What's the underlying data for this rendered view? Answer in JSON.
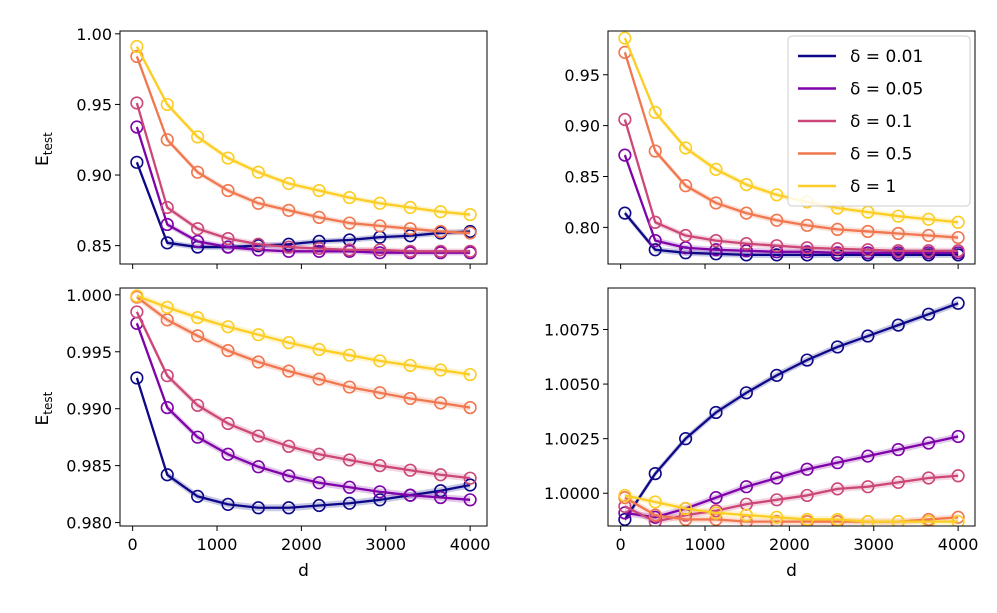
{
  "chart_data": [
    {
      "type": "line",
      "panel": "top-left",
      "ylabel": "E_test",
      "xlabel": "",
      "x": [
        50,
        410,
        770,
        1130,
        1490,
        1850,
        2210,
        2570,
        2930,
        3290,
        3650,
        4000
      ],
      "xlim": [
        -150,
        4200
      ],
      "ylim": [
        0.837,
        1.002
      ],
      "xticks": [
        "0",
        "1000",
        "2000",
        "3000",
        "4000"
      ],
      "xtick_values": [
        0,
        1000,
        2000,
        3000,
        4000
      ],
      "show_xticklabels": false,
      "yticks": [
        "0.85",
        "0.90",
        "0.95",
        "1.00"
      ],
      "ytick_values": [
        0.85,
        0.9,
        0.95,
        1.0
      ],
      "band": 0.002,
      "series": [
        {
          "name": "δ = 0.01",
          "values": [
            0.909,
            0.852,
            0.849,
            0.849,
            0.85,
            0.851,
            0.853,
            0.854,
            0.856,
            0.857,
            0.859,
            0.86
          ]
        },
        {
          "name": "δ = 0.05",
          "values": [
            0.934,
            0.865,
            0.853,
            0.849,
            0.847,
            0.846,
            0.846,
            0.846,
            0.845,
            0.845,
            0.845,
            0.845
          ]
        },
        {
          "name": "δ = 0.1",
          "values": [
            0.951,
            0.877,
            0.862,
            0.855,
            0.851,
            0.849,
            0.848,
            0.847,
            0.847,
            0.846,
            0.846,
            0.846
          ]
        },
        {
          "name": "δ = 0.5",
          "values": [
            0.984,
            0.925,
            0.902,
            0.889,
            0.88,
            0.875,
            0.87,
            0.866,
            0.864,
            0.862,
            0.86,
            0.859
          ]
        },
        {
          "name": "δ = 1",
          "values": [
            0.991,
            0.95,
            0.927,
            0.912,
            0.902,
            0.894,
            0.889,
            0.884,
            0.88,
            0.877,
            0.874,
            0.872
          ]
        }
      ]
    },
    {
      "type": "line",
      "panel": "top-right",
      "ylabel": "",
      "xlabel": "",
      "x": [
        50,
        410,
        770,
        1130,
        1490,
        1850,
        2210,
        2570,
        2930,
        3290,
        3650,
        4000
      ],
      "xlim": [
        -150,
        4200
      ],
      "ylim": [
        0.764,
        0.993
      ],
      "xticks": [
        "0",
        "1000",
        "2000",
        "3000",
        "4000"
      ],
      "xtick_values": [
        0,
        1000,
        2000,
        3000,
        4000
      ],
      "show_xticklabels": false,
      "yticks": [
        "0.80",
        "0.85",
        "0.90",
        "0.95"
      ],
      "ytick_values": [
        0.8,
        0.85,
        0.9,
        0.95
      ],
      "band": 0.003,
      "series": [
        {
          "name": "δ = 0.01",
          "values": [
            0.814,
            0.778,
            0.775,
            0.774,
            0.773,
            0.773,
            0.773,
            0.773,
            0.773,
            0.773,
            0.773,
            0.773
          ]
        },
        {
          "name": "δ = 0.05",
          "values": [
            0.871,
            0.787,
            0.78,
            0.778,
            0.777,
            0.776,
            0.776,
            0.775,
            0.775,
            0.775,
            0.775,
            0.775
          ]
        },
        {
          "name": "δ = 0.1",
          "values": [
            0.906,
            0.805,
            0.792,
            0.787,
            0.784,
            0.782,
            0.78,
            0.779,
            0.778,
            0.777,
            0.777,
            0.777
          ]
        },
        {
          "name": "δ = 0.5",
          "values": [
            0.972,
            0.875,
            0.841,
            0.824,
            0.814,
            0.807,
            0.802,
            0.798,
            0.796,
            0.794,
            0.792,
            0.79
          ]
        },
        {
          "name": "δ = 1",
          "values": [
            0.986,
            0.913,
            0.878,
            0.857,
            0.842,
            0.832,
            0.825,
            0.819,
            0.815,
            0.811,
            0.808,
            0.805
          ]
        }
      ]
    },
    {
      "type": "line",
      "panel": "bottom-left",
      "ylabel": "E_test",
      "xlabel": "d",
      "x": [
        50,
        410,
        770,
        1130,
        1490,
        1850,
        2210,
        2570,
        2930,
        3290,
        3650,
        4000
      ],
      "xlim": [
        -150,
        4200
      ],
      "ylim": [
        0.9797,
        1.0006
      ],
      "xticks": [
        "0",
        "1000",
        "2000",
        "3000",
        "4000"
      ],
      "xtick_values": [
        0,
        1000,
        2000,
        3000,
        4000
      ],
      "show_xticklabels": true,
      "yticks": [
        "0.980",
        "0.985",
        "0.990",
        "0.995",
        "1.000"
      ],
      "ytick_values": [
        0.98,
        0.985,
        0.99,
        0.995,
        1.0
      ],
      "band": 0.0003,
      "series": [
        {
          "name": "δ = 0.01",
          "values": [
            0.9927,
            0.9842,
            0.9823,
            0.9816,
            0.9813,
            0.9813,
            0.9815,
            0.9817,
            0.982,
            0.9824,
            0.9828,
            0.9833
          ]
        },
        {
          "name": "δ = 0.05",
          "values": [
            0.9975,
            0.9901,
            0.9875,
            0.986,
            0.9849,
            0.9841,
            0.9835,
            0.9831,
            0.9827,
            0.9824,
            0.9822,
            0.982
          ]
        },
        {
          "name": "δ = 0.1",
          "values": [
            0.9985,
            0.9929,
            0.9903,
            0.9887,
            0.9876,
            0.9867,
            0.986,
            0.9855,
            0.985,
            0.9846,
            0.9842,
            0.9839
          ]
        },
        {
          "name": "δ = 0.5",
          "values": [
            0.9998,
            0.9978,
            0.9964,
            0.9951,
            0.9941,
            0.9933,
            0.9926,
            0.9919,
            0.9914,
            0.9909,
            0.9905,
            0.9901
          ]
        },
        {
          "name": "δ = 1",
          "values": [
            0.9999,
            0.9989,
            0.998,
            0.9972,
            0.9965,
            0.9958,
            0.9952,
            0.9947,
            0.9942,
            0.9938,
            0.9934,
            0.993
          ]
        }
      ]
    },
    {
      "type": "line",
      "panel": "bottom-right",
      "ylabel": "",
      "xlabel": "d",
      "x": [
        50,
        410,
        770,
        1130,
        1490,
        1850,
        2210,
        2570,
        2930,
        3290,
        3650,
        4000
      ],
      "xlim": [
        -150,
        4200
      ],
      "ylim": [
        0.9985,
        1.0094
      ],
      "xticks": [
        "0",
        "1000",
        "2000",
        "3000",
        "4000"
      ],
      "xtick_values": [
        0,
        1000,
        2000,
        3000,
        4000
      ],
      "show_xticklabels": true,
      "yticks": [
        "1.0000",
        "1.0025",
        "1.0050",
        "1.0075"
      ],
      "ytick_values": [
        1.0,
        1.0025,
        1.005,
        1.0075
      ],
      "band": 0.00015,
      "series": [
        {
          "name": "δ = 0.01",
          "values": [
            0.9988,
            1.0009,
            1.0025,
            1.0037,
            1.0046,
            1.0054,
            1.0061,
            1.0067,
            1.0072,
            1.0077,
            1.0082,
            1.0087
          ]
        },
        {
          "name": "δ = 0.05",
          "values": [
            0.9991,
            0.9989,
            0.9993,
            0.9998,
            1.0003,
            1.0007,
            1.0011,
            1.0014,
            1.0017,
            1.002,
            1.0023,
            1.0026
          ]
        },
        {
          "name": "δ = 0.1",
          "values": [
            0.9994,
            0.9987,
            0.999,
            0.9992,
            0.9995,
            0.9997,
            0.9999,
            1.0002,
            1.0003,
            1.0005,
            1.0007,
            1.0008
          ]
        },
        {
          "name": "δ = 0.5",
          "values": [
            0.9998,
            0.999,
            0.9988,
            0.9988,
            0.9987,
            0.9987,
            0.9987,
            0.9987,
            0.9987,
            0.9987,
            0.9988,
            0.9989
          ]
        },
        {
          "name": "δ = 1",
          "values": [
            0.9999,
            0.9996,
            0.9993,
            0.9991,
            0.999,
            0.9989,
            0.9988,
            0.9988,
            0.9987,
            0.9987,
            0.9987,
            0.9987
          ]
        }
      ]
    }
  ],
  "legend": {
    "panel": "top-right",
    "position": "top-right",
    "entries": [
      {
        "label": "δ = 0.01",
        "color": "#0d0887"
      },
      {
        "label": "δ = 0.05",
        "color": "#7e03a8"
      },
      {
        "label": "δ = 0.1",
        "color": "#cc4778"
      },
      {
        "label": "δ = 0.5",
        "color": "#f0774f"
      },
      {
        "label": "δ = 1",
        "color": "#fcce25"
      }
    ]
  },
  "series_colors": [
    "#0d0887",
    "#7e03a8",
    "#cc4778",
    "#f0774f",
    "#fcce25"
  ]
}
